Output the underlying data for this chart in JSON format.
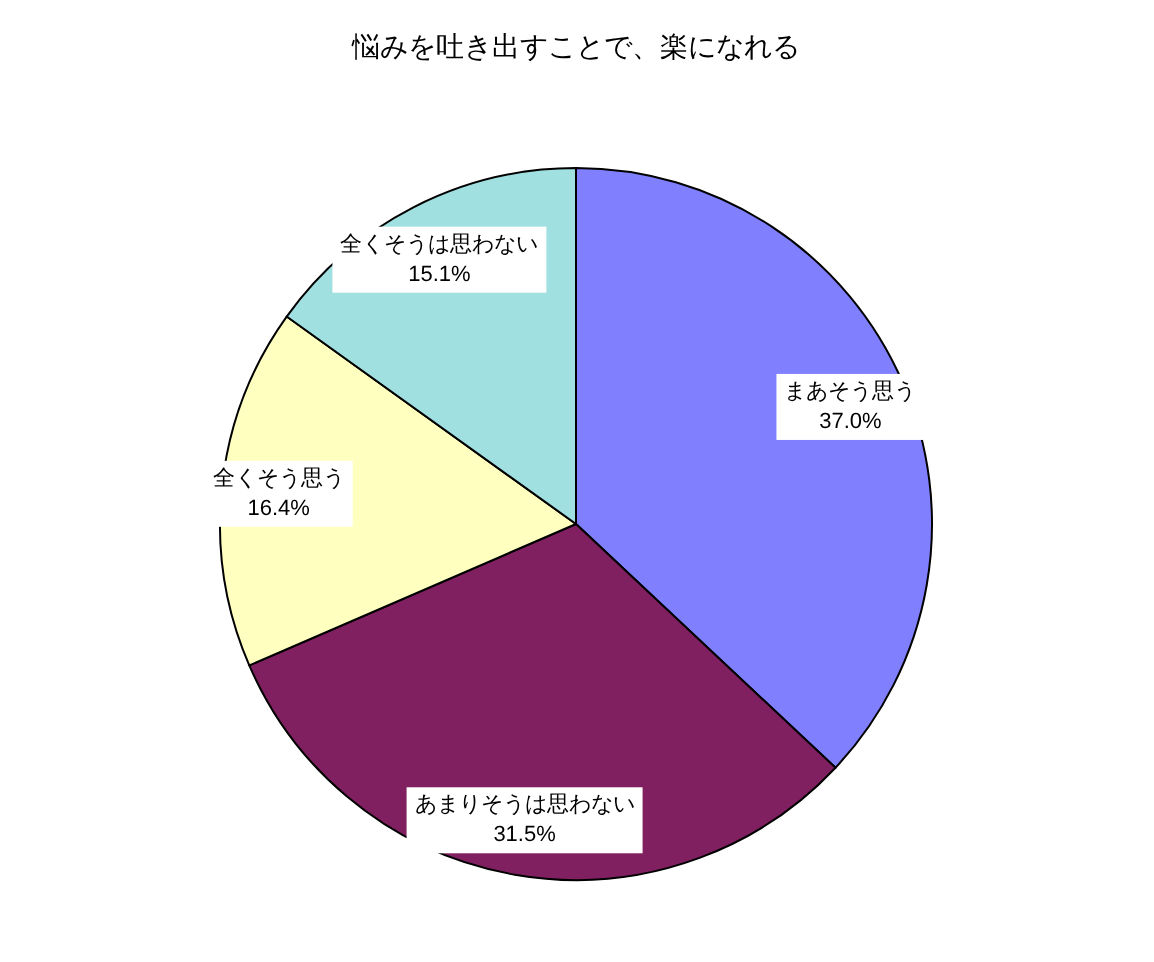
{
  "chart_data": {
    "type": "pie",
    "title": "悩みを吐き出すことで、楽になれる",
    "categories": [
      "まあそう思う",
      "あまりそうは思わない",
      "全くそう思う",
      "全くそうは思わない"
    ],
    "values": [
      37.0,
      31.5,
      16.4,
      15.1
    ],
    "value_labels": [
      "37.0%",
      "31.5%",
      "16.4%",
      "15.1%"
    ],
    "colors": [
      "#8080ff",
      "#802060",
      "#ffffc0",
      "#a0e0e0"
    ]
  }
}
